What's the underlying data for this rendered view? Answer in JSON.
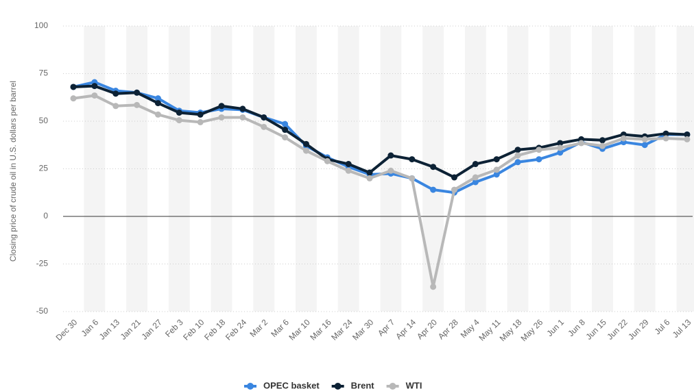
{
  "chart_data": {
    "type": "line",
    "y_axis_label": "Closing price of crude oil in U.S. dollars per barrel",
    "categories": [
      "Dec 30",
      "Jan 6",
      "Jan 13",
      "Jan 21",
      "Jan 27",
      "Feb 3",
      "Feb 10",
      "Feb 18",
      "Feb 24",
      "Mar 2",
      "Mar 6",
      "Mar 10",
      "Mar 16",
      "Mar 24",
      "Mar 30",
      "Apr 7",
      "Apr 14",
      "Apr 20",
      "Apr 28",
      "May 4",
      "May 11",
      "May 18",
      "May 26",
      "Jun 1",
      "Jun 8",
      "Jun 15",
      "Jun 22",
      "Jun 29",
      "Jul 6",
      "Jul 13"
    ],
    "series": [
      {
        "name": "OPEC basket",
        "color": "#3a86e0",
        "values": [
          68,
          70.5,
          66,
          65,
          62,
          55.5,
          54.5,
          56.5,
          56,
          52,
          48.5,
          37,
          31,
          26,
          22,
          22.5,
          20,
          14,
          12.5,
          18,
          22,
          28.5,
          30,
          33.5,
          39,
          35.5,
          39,
          37.5,
          43,
          43
        ]
      },
      {
        "name": "Brent",
        "color": "#0d2235",
        "values": [
          68,
          68.5,
          64.5,
          65,
          59.5,
          54.5,
          53.5,
          58,
          56.5,
          52,
          45.5,
          38,
          30,
          27.5,
          23,
          32,
          30,
          26,
          20.5,
          27.5,
          30,
          35,
          36,
          38.5,
          40.5,
          40,
          43,
          42,
          43.5,
          43
        ]
      },
      {
        "name": "WTI",
        "color": "#b8b8b8",
        "values": [
          62,
          63.5,
          58,
          58.5,
          53.5,
          50.5,
          49.5,
          52,
          52,
          47,
          41.5,
          34.5,
          29,
          24,
          20,
          24,
          20,
          -37,
          14,
          20.5,
          24.5,
          32,
          35,
          36,
          38.5,
          37,
          41,
          40.5,
          41,
          40.5
        ]
      }
    ],
    "ylim": [
      -50,
      100
    ],
    "yticks": [
      -50,
      -25,
      0,
      25,
      50,
      75,
      100
    ],
    "grid": true,
    "legend": "bottom"
  }
}
